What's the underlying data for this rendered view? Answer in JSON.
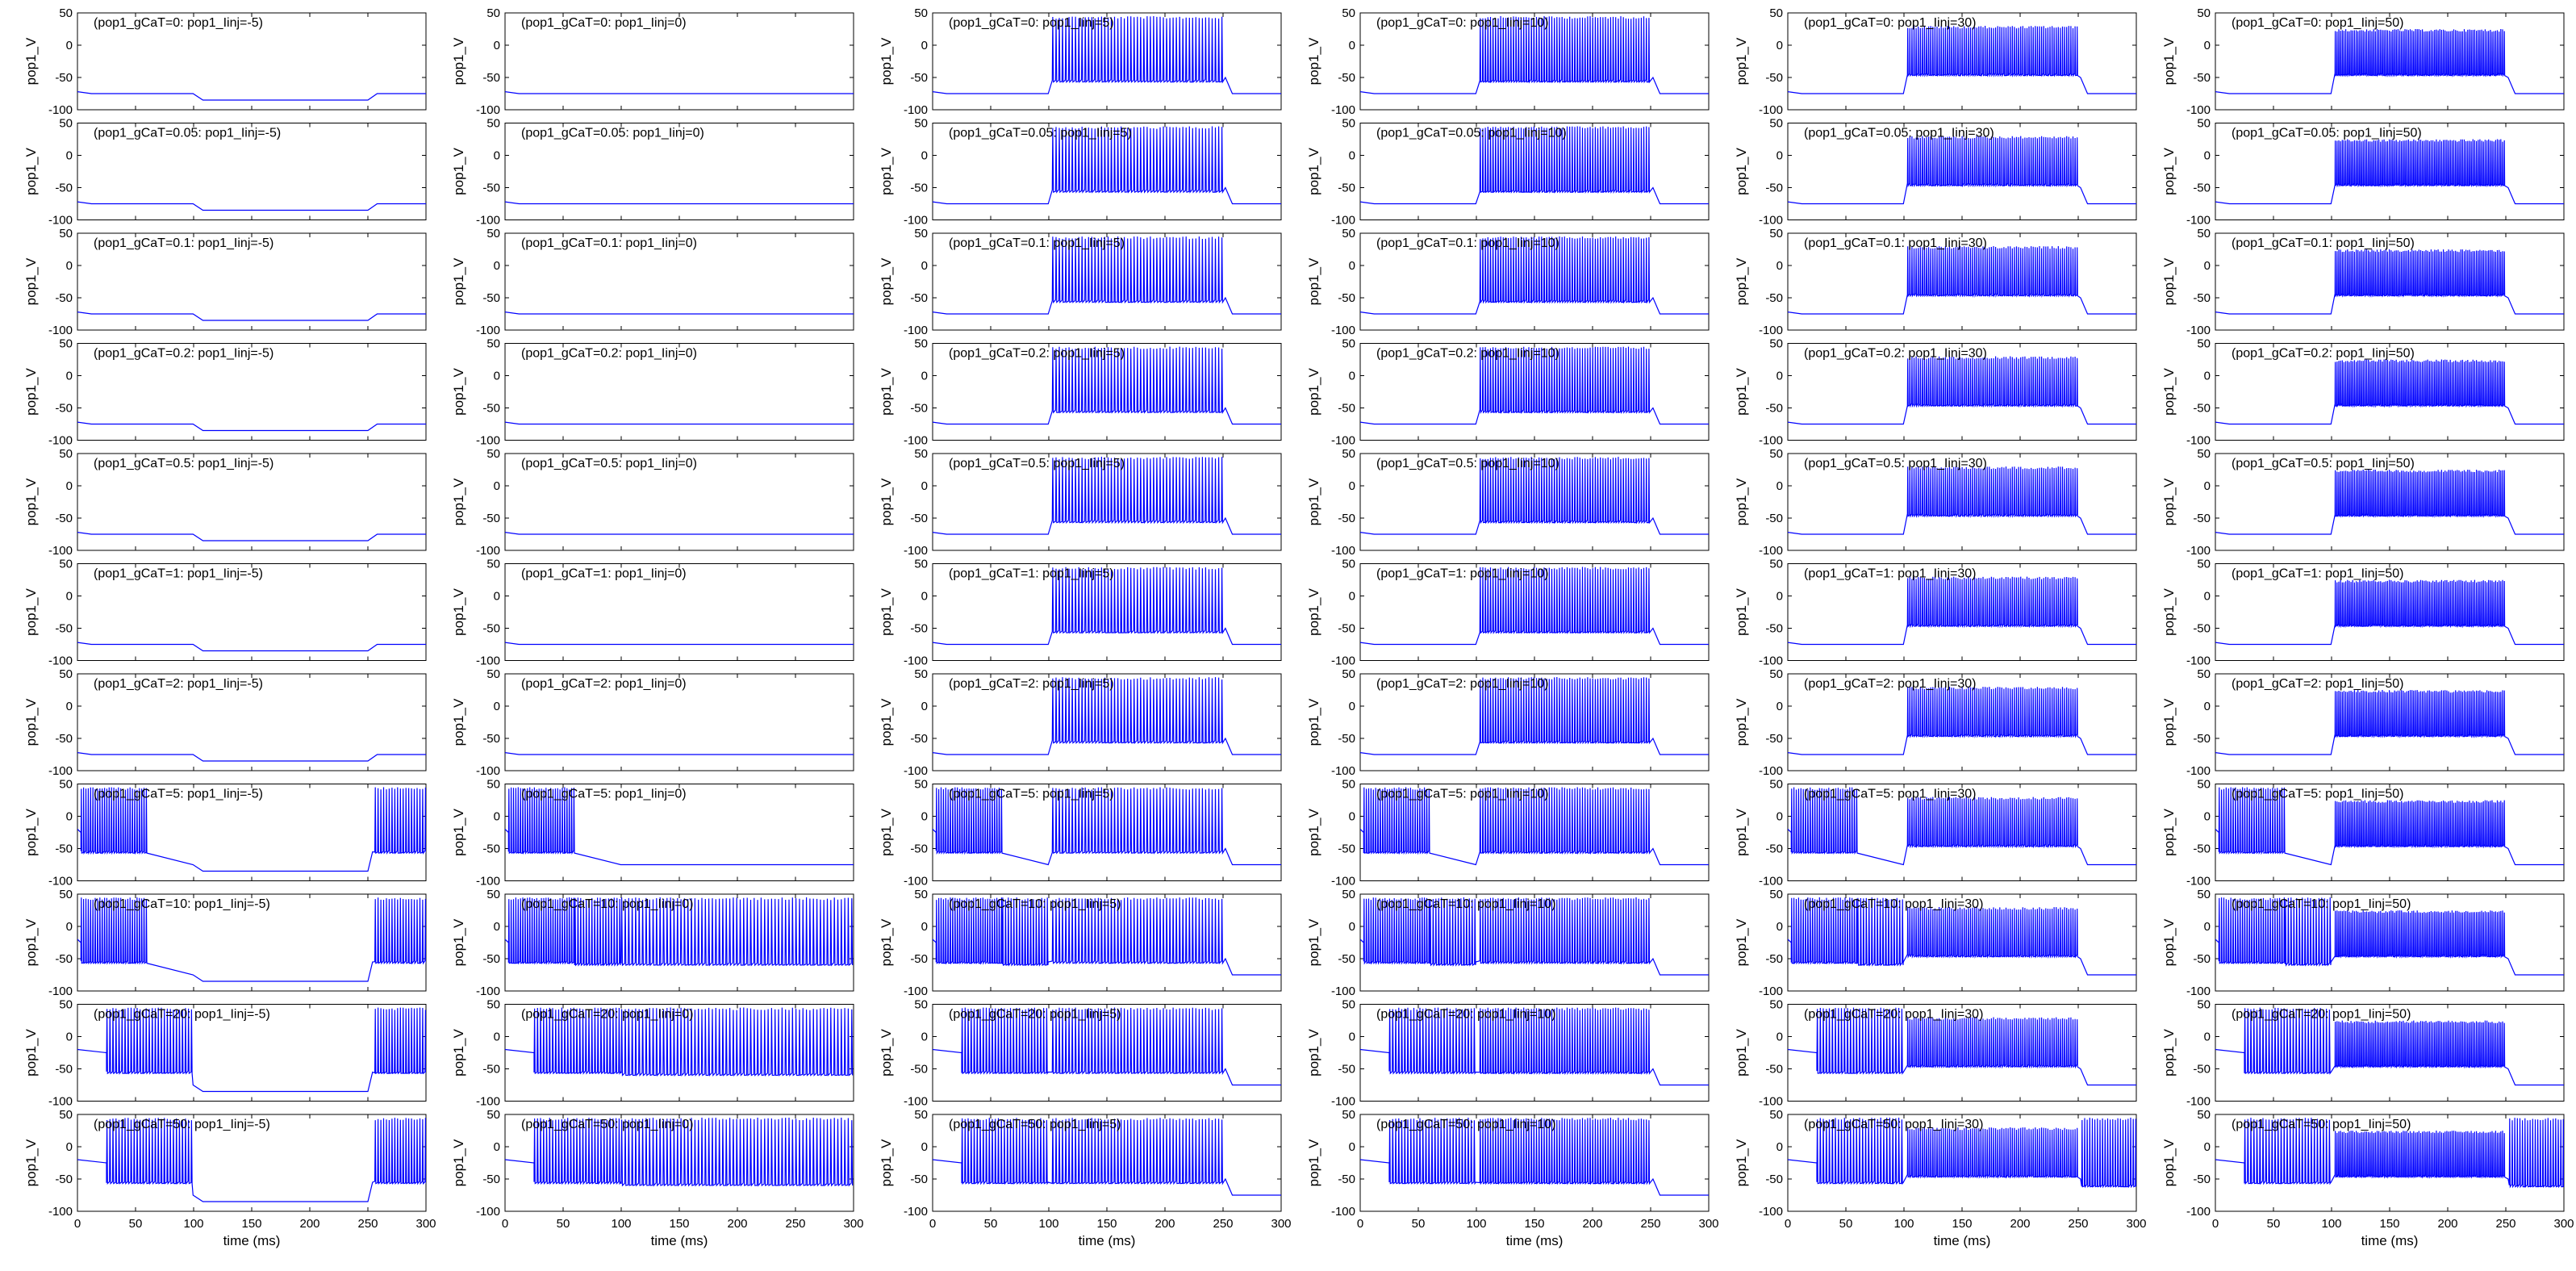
{
  "chart_data": {
    "type": "line",
    "layout": "grid",
    "trace_color": "#0000ff",
    "xlabel": "time (ms)",
    "ylabel": "pop1_V",
    "xlim": [
      0,
      300
    ],
    "ylim": [
      -100,
      50
    ],
    "xticks": [
      0,
      50,
      100,
      150,
      200,
      250,
      300
    ],
    "yticks": [
      50,
      0,
      -50,
      -100
    ],
    "stimulus_window_ms": [
      100,
      250
    ],
    "row_param": "pop1_gCaT",
    "col_param": "pop1_Iinj",
    "rows": [
      "0",
      "0.05",
      "0.1",
      "0.2",
      "0.5",
      "1",
      "2",
      "5",
      "10",
      "20",
      "50"
    ],
    "cols": [
      "-5",
      "0",
      "5",
      "10",
      "30",
      "50"
    ],
    "titles": [
      [
        "(pop1_gCaT=0: pop1_Iinj=-5)",
        "(pop1_gCaT=0: pop1_Iinj=0)",
        "(pop1_gCaT=0: pop1_Iinj=5)",
        "(pop1_gCaT=0: pop1_Iinj=10)",
        "(pop1_gCaT=0: pop1_Iinj=30)",
        "(pop1_gCaT=0: pop1_Iinj=50)"
      ],
      [
        "(pop1_gCaT=0.05: pop1_Iinj=-5)",
        "(pop1_gCaT=0.05: pop1_Iinj=0)",
        "(pop1_gCaT=0.05: pop1_Iinj=5)",
        "(pop1_gCaT=0.05: pop1_Iinj=10)",
        "(pop1_gCaT=0.05: pop1_Iinj=30)",
        "(pop1_gCaT=0.05: pop1_Iinj=50)"
      ],
      [
        "(pop1_gCaT=0.1: pop1_Iinj=-5)",
        "(pop1_gCaT=0.1: pop1_Iinj=0)",
        "(pop1_gCaT=0.1: pop1_Iinj=5)",
        "(pop1_gCaT=0.1: pop1_Iinj=10)",
        "(pop1_gCaT=0.1: pop1_Iinj=30)",
        "(pop1_gCaT=0.1: pop1_Iinj=50)"
      ],
      [
        "(pop1_gCaT=0.2: pop1_Iinj=-5)",
        "(pop1_gCaT=0.2: pop1_Iinj=0)",
        "(pop1_gCaT=0.2: pop1_Iinj=5)",
        "(pop1_gCaT=0.2: pop1_Iinj=10)",
        "(pop1_gCaT=0.2: pop1_Iinj=30)",
        "(pop1_gCaT=0.2: pop1_Iinj=50)"
      ],
      [
        "(pop1_gCaT=0.5: pop1_Iinj=-5)",
        "(pop1_gCaT=0.5: pop1_Iinj=0)",
        "(pop1_gCaT=0.5: pop1_Iinj=5)",
        "(pop1_gCaT=0.5: pop1_Iinj=10)",
        "(pop1_gCaT=0.5: pop1_Iinj=30)",
        "(pop1_gCaT=0.5: pop1_Iinj=50)"
      ],
      [
        "(pop1_gCaT=1: pop1_Iinj=-5)",
        "(pop1_gCaT=1: pop1_Iinj=0)",
        "(pop1_gCaT=1: pop1_Iinj=5)",
        "(pop1_gCaT=1: pop1_Iinj=10)",
        "(pop1_gCaT=1: pop1_Iinj=30)",
        "(pop1_gCaT=1: pop1_Iinj=50)"
      ],
      [
        "(pop1_gCaT=2: pop1_Iinj=-5)",
        "(pop1_gCaT=2: pop1_Iinj=0)",
        "(pop1_gCaT=2: pop1_Iinj=5)",
        "(pop1_gCaT=2: pop1_Iinj=10)",
        "(pop1_gCaT=2: pop1_Iinj=30)",
        "(pop1_gCaT=2: pop1_Iinj=50)"
      ],
      [
        "(pop1_gCaT=5: pop1_Iinj=-5)",
        "(pop1_gCaT=5: pop1_Iinj=0)",
        "(pop1_gCaT=5: pop1_Iinj=5)",
        "(pop1_gCaT=5: pop1_Iinj=10)",
        "(pop1_gCaT=5: pop1_Iinj=30)",
        "(pop1_gCaT=5: pop1_Iinj=50)"
      ],
      [
        "(pop1_gCaT=10: pop1_Iinj=-5)",
        "(pop1_gCaT=10: pop1_Iinj=0)",
        "(pop1_gCaT=10: pop1_Iinj=5)",
        "(pop1_gCaT=10: pop1_Iinj=10)",
        "(pop1_gCaT=10: pop1_Iinj=30)",
        "(pop1_gCaT=10: pop1_Iinj=50)"
      ],
      [
        "(pop1_gCaT=20: pop1_Iinj=-5)",
        "(pop1_gCaT=20: pop1_Iinj=0)",
        "(pop1_gCaT=20: pop1_Iinj=5)",
        "(pop1_gCaT=20: pop1_Iinj=10)",
        "(pop1_gCaT=20: pop1_Iinj=30)",
        "(pop1_gCaT=20: pop1_Iinj=50)"
      ],
      [
        "(pop1_gCaT=50: pop1_Iinj=-5)",
        "(pop1_gCaT=50: pop1_Iinj=0)",
        "(pop1_gCaT=50: pop1_Iinj=5)",
        "(pop1_gCaT=50: pop1_Iinj=10)",
        "(pop1_gCaT=50: pop1_Iinj=30)",
        "(pop1_gCaT=50: pop1_Iinj=50)"
      ]
    ],
    "approx_rest_potential_mv": -75,
    "approx_spike_peak_mv": 45,
    "approx_hyperpolarized_mv": -85
  }
}
